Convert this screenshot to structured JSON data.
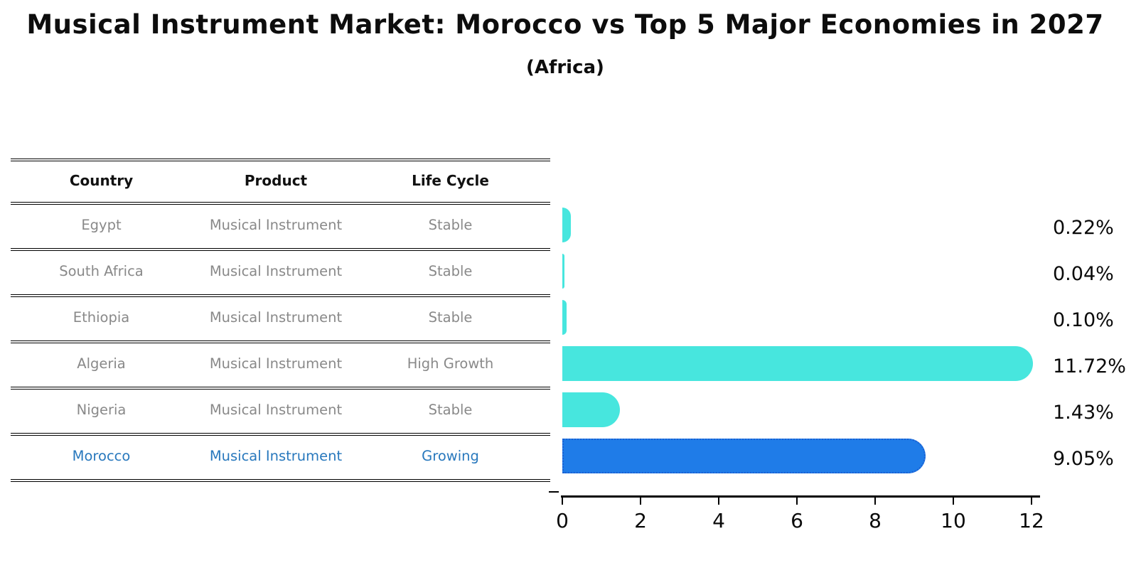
{
  "title": "Musical Instrument Market: Morocco vs Top 5 Major Economies in 2027",
  "subtitle": "(Africa)",
  "table": {
    "headers": [
      "Country",
      "Product",
      "Life Cycle"
    ],
    "rows": [
      {
        "country": "Egypt",
        "product": "Musical Instrument",
        "life_cycle": "Stable",
        "highlight": false
      },
      {
        "country": "South Africa",
        "product": "Musical Instrument",
        "life_cycle": "Stable",
        "highlight": false
      },
      {
        "country": "Ethiopia",
        "product": "Musical Instrument",
        "life_cycle": "Stable",
        "highlight": false
      },
      {
        "country": "Algeria",
        "product": "Musical Instrument",
        "life_cycle": "High Growth",
        "highlight": false
      },
      {
        "country": "Nigeria",
        "product": "Musical Instrument",
        "life_cycle": "Stable",
        "highlight": false
      },
      {
        "country": "Morocco",
        "product": "Musical Instrument",
        "life_cycle": "Growing",
        "highlight": true
      }
    ]
  },
  "chart_data": {
    "type": "bar",
    "orientation": "horizontal",
    "categories": [
      "Egypt",
      "South Africa",
      "Ethiopia",
      "Algeria",
      "Nigeria",
      "Morocco"
    ],
    "values": [
      0.22,
      0.04,
      0.1,
      11.72,
      1.43,
      9.05
    ],
    "value_labels": [
      "0.22%",
      "0.04%",
      "0.10%",
      "11.72%",
      "1.43%",
      "9.05%"
    ],
    "xticks": [
      "0",
      "2",
      "4",
      "6",
      "8",
      "10",
      "12"
    ],
    "xlim": [
      0,
      12.3
    ],
    "grid": false,
    "legend": "none",
    "bar_color": "#47e6de",
    "highlight_bar_color": "#1f7ce8",
    "highlight_bar_border": "#1a5fd2",
    "highlight_text_color": "#2878bd",
    "table_text_color": "#898989",
    "highlight_index": 5
  }
}
